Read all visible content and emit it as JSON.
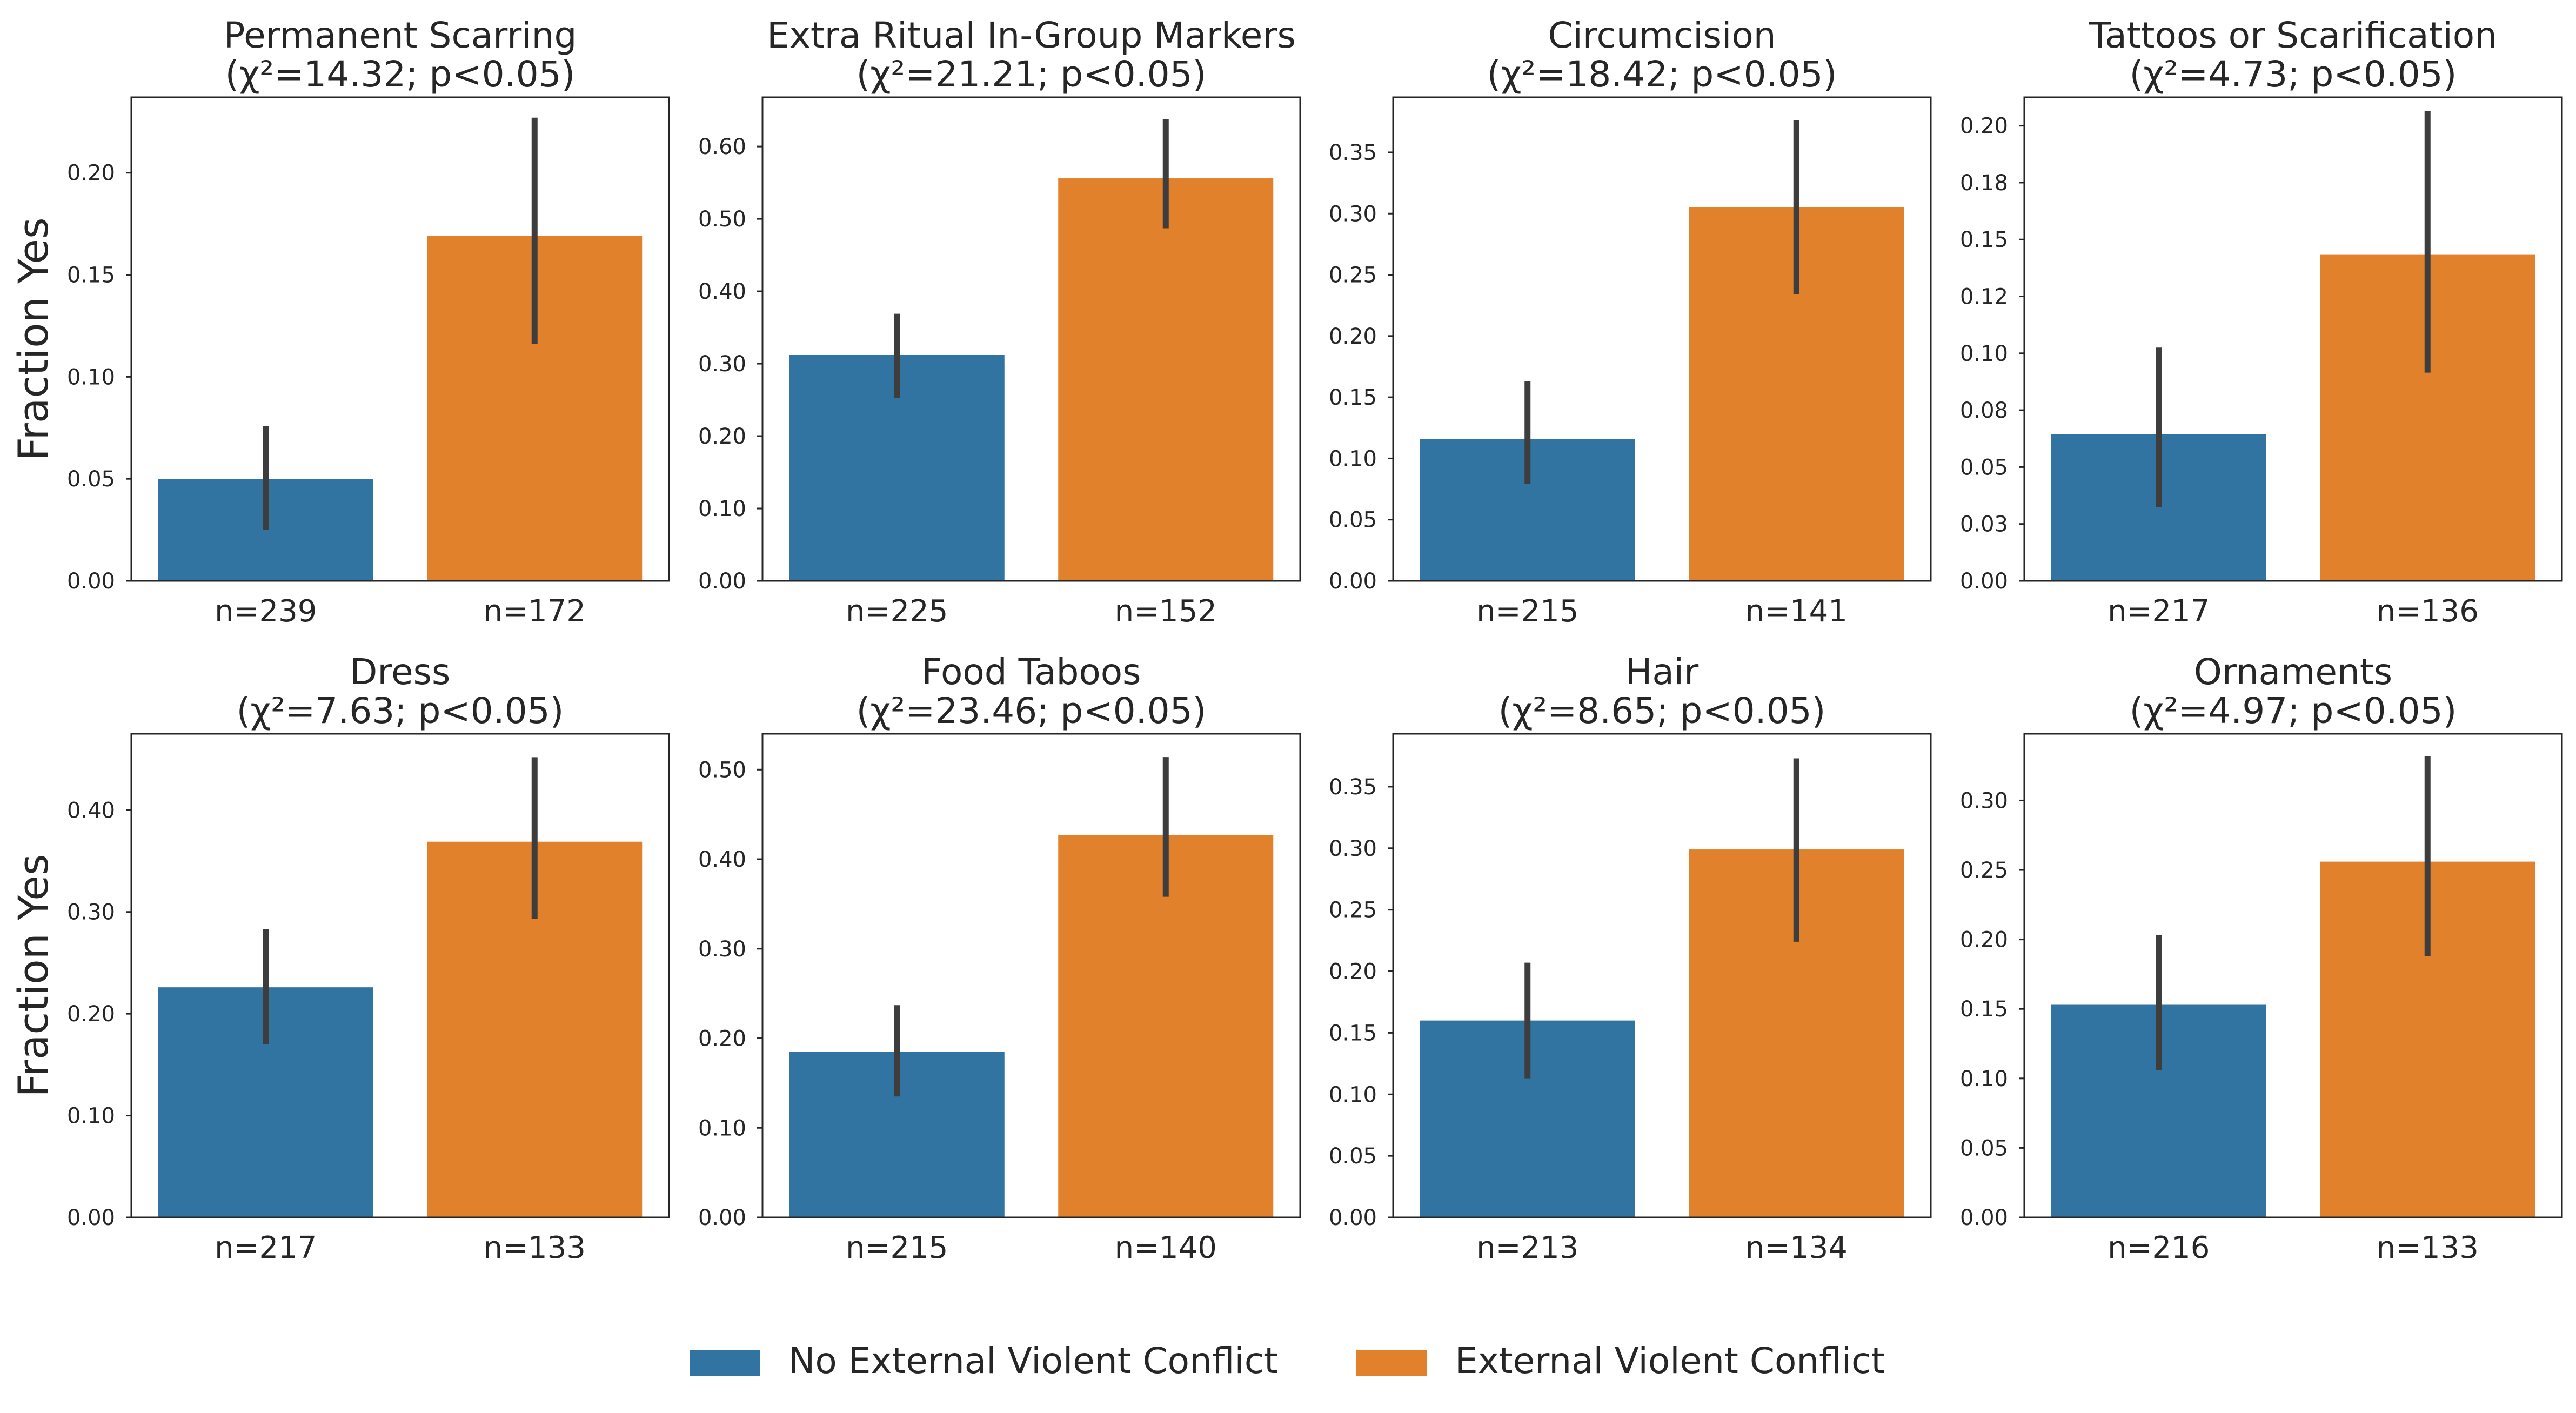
{
  "colors": {
    "no_conflict": "#3274a1",
    "conflict": "#e1812c",
    "error_bar": "#3d3d3d",
    "axis": "#262626"
  },
  "y_axis_label": "Fraction Yes",
  "legend": {
    "no_conflict": "No External Violent Conflict",
    "conflict": "External Violent Conflict"
  },
  "chart_data": [
    {
      "type": "bar",
      "title": "Permanent Scarring",
      "subtitle": "(χ²=14.32; p<0.05)",
      "categories": [
        "n=239",
        "n=172"
      ],
      "values": [
        0.05,
        0.169
      ],
      "error_low": [
        0.025,
        0.116
      ],
      "error_high": [
        0.076,
        0.227
      ],
      "ylim": [
        0,
        0.237
      ],
      "yticks": [
        0.0,
        0.05,
        0.1,
        0.15,
        0.2
      ],
      "ytick_labels": [
        "0.00",
        "0.05",
        "0.10",
        "0.15",
        "0.20"
      ]
    },
    {
      "type": "bar",
      "title": "Extra Ritual In-Group Markers",
      "subtitle": "(χ²=21.21; p<0.05)",
      "categories": [
        "n=225",
        "n=152"
      ],
      "values": [
        0.312,
        0.556
      ],
      "error_low": [
        0.253,
        0.487
      ],
      "error_high": [
        0.369,
        0.638
      ],
      "ylim": [
        0,
        0.668
      ],
      "yticks": [
        0.0,
        0.1,
        0.2,
        0.3,
        0.4,
        0.5,
        0.6
      ],
      "ytick_labels": [
        "0.00",
        "0.10",
        "0.20",
        "0.30",
        "0.40",
        "0.50",
        "0.60"
      ]
    },
    {
      "type": "bar",
      "title": "Circumcision",
      "subtitle": "(χ²=18.42; p<0.05)",
      "categories": [
        "n=215",
        "n=141"
      ],
      "values": [
        0.116,
        0.305
      ],
      "error_low": [
        0.079,
        0.234
      ],
      "error_high": [
        0.163,
        0.376
      ],
      "ylim": [
        0,
        0.395
      ],
      "yticks": [
        0.0,
        0.05,
        0.1,
        0.15,
        0.2,
        0.25,
        0.3,
        0.35
      ],
      "ytick_labels": [
        "0.00",
        "0.05",
        "0.10",
        "0.15",
        "0.20",
        "0.25",
        "0.30",
        "0.35"
      ]
    },
    {
      "type": "bar",
      "title": "Tattoos or Scarification",
      "subtitle": "(χ²=4.73; p<0.05)",
      "categories": [
        "n=217",
        "n=136"
      ],
      "values": [
        0.0645,
        0.1435
      ],
      "error_low": [
        0.0325,
        0.0915
      ],
      "error_high": [
        0.1025,
        0.2065
      ],
      "ylim": [
        0,
        0.2125
      ],
      "yticks": [
        0.0,
        0.025,
        0.05,
        0.075,
        0.1,
        0.125,
        0.15,
        0.175,
        0.2
      ],
      "ytick_labels": [
        "0.00",
        "0.03",
        "0.05",
        "0.08",
        "0.10",
        "0.12",
        "0.15",
        "0.18",
        "0.20"
      ]
    },
    {
      "type": "bar",
      "title": "Dress",
      "subtitle": "(χ²=7.63; p<0.05)",
      "categories": [
        "n=217",
        "n=133"
      ],
      "values": [
        0.226,
        0.369
      ],
      "error_low": [
        0.17,
        0.293
      ],
      "error_high": [
        0.283,
        0.452
      ],
      "ylim": [
        0,
        0.475
      ],
      "yticks": [
        0.0,
        0.1,
        0.2,
        0.3,
        0.4
      ],
      "ytick_labels": [
        "0.00",
        "0.10",
        "0.20",
        "0.30",
        "0.40"
      ]
    },
    {
      "type": "bar",
      "title": "Food Taboos",
      "subtitle": "(χ²=23.46; p<0.05)",
      "categories": [
        "n=215",
        "n=140"
      ],
      "values": [
        0.185,
        0.427
      ],
      "error_low": [
        0.135,
        0.358
      ],
      "error_high": [
        0.237,
        0.514
      ],
      "ylim": [
        0,
        0.54
      ],
      "yticks": [
        0.0,
        0.1,
        0.2,
        0.3,
        0.4,
        0.5
      ],
      "ytick_labels": [
        "0.00",
        "0.10",
        "0.20",
        "0.30",
        "0.40",
        "0.50"
      ]
    },
    {
      "type": "bar",
      "title": "Hair",
      "subtitle": "(χ²=8.65; p<0.05)",
      "categories": [
        "n=213",
        "n=134"
      ],
      "values": [
        0.16,
        0.299
      ],
      "error_low": [
        0.113,
        0.224
      ],
      "error_high": [
        0.207,
        0.373
      ],
      "ylim": [
        0,
        0.393
      ],
      "yticks": [
        0.0,
        0.05,
        0.1,
        0.15,
        0.2,
        0.25,
        0.3,
        0.35
      ],
      "ytick_labels": [
        "0.00",
        "0.05",
        "0.10",
        "0.15",
        "0.20",
        "0.25",
        "0.30",
        "0.35"
      ]
    },
    {
      "type": "bar",
      "title": "Ornaments",
      "subtitle": "(χ²=4.97; p<0.05)",
      "categories": [
        "n=216",
        "n=133"
      ],
      "values": [
        0.153,
        0.256
      ],
      "error_low": [
        0.106,
        0.188
      ],
      "error_high": [
        0.203,
        0.332
      ],
      "ylim": [
        0,
        0.348
      ],
      "yticks": [
        0.0,
        0.05,
        0.1,
        0.15,
        0.2,
        0.25,
        0.3
      ],
      "ytick_labels": [
        "0.00",
        "0.05",
        "0.10",
        "0.15",
        "0.20",
        "0.25",
        "0.30"
      ]
    }
  ]
}
